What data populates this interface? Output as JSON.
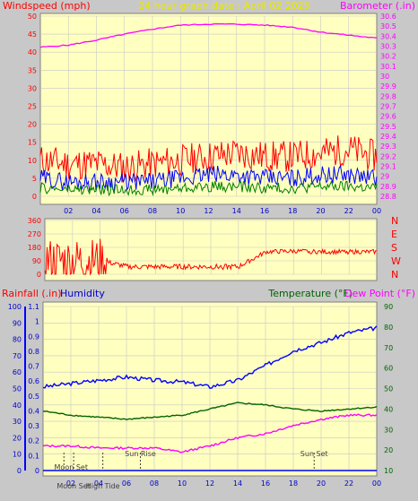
{
  "header": {
    "left_title": "Windspeed (mph)",
    "center_title": "24 hour graph date : April 02 2025",
    "right_title": "Barometer (.in)"
  },
  "colors": {
    "background": "#c8c8c8",
    "plot_bg": "#ffffc0",
    "grid": "#c8c8c8",
    "wind_gust": "#ff0000",
    "wind_avg": "#0000ff",
    "wind_min": "#008000",
    "barometer": "#ff00ff",
    "direction": "#ff0000",
    "humidity": "#0000ff",
    "temperature": "#006400",
    "dewpoint": "#ff00ff",
    "rainfall": "#0000ff",
    "left_axis_text": "#ff0000",
    "right_axis_text": "#ff00ff",
    "temp_axis_text": "#006400"
  },
  "wind_panel": {
    "left_ticks": [
      "0",
      "5",
      "10",
      "15",
      "20",
      "25",
      "30",
      "35",
      "40",
      "45",
      "50"
    ],
    "right_ticks": [
      "28.8",
      "28.9",
      "29",
      "29.1",
      "29.2",
      "29.3",
      "29.4",
      "29.5",
      "29.6",
      "29.7",
      "29.8",
      "29.9",
      "30",
      "30.1",
      "30.2",
      "30.3",
      "30.4",
      "30.5",
      "30.6"
    ]
  },
  "direction_panel": {
    "left_ticks": [
      "0",
      "90",
      "180",
      "270",
      "360"
    ],
    "compass": [
      "N",
      "W",
      "S",
      "E",
      "N"
    ]
  },
  "lower_panel": {
    "rain_title": "Rainfall (.in)",
    "humidity_title": "Humidity",
    "temperature_title": "Temperature (°F)",
    "dewpoint_title": "Dew Point (°F)",
    "humidity_ticks": [
      "0",
      "10",
      "20",
      "30",
      "40",
      "50",
      "60",
      "70",
      "80",
      "90",
      "100"
    ],
    "rain_ticks": [
      "0",
      "0.1",
      "0.2",
      "0.3",
      "0.4",
      "0.5",
      "0.6",
      "0.7",
      "0.8",
      "0.9",
      "1",
      "1.1"
    ],
    "temp_ticks": [
      "10",
      "20",
      "30",
      "40",
      "50",
      "60",
      "70",
      "80",
      "90"
    ],
    "markers": [
      {
        "label": "Sun Rise",
        "hour": 7.0
      },
      {
        "label": "Sun Set",
        "hour": 19.5
      },
      {
        "label": "Moon Set",
        "hour": 1.5
      },
      {
        "label": "Moon Set",
        "hour": 2.2
      },
      {
        "label": "High Tide",
        "hour": 4.3
      }
    ]
  },
  "x_ticks": [
    "02",
    "04",
    "06",
    "08",
    "10",
    "12",
    "14",
    "16",
    "18",
    "20",
    "22",
    "00"
  ],
  "chart_data": [
    {
      "type": "line",
      "title": "24 hour graph date : April 02 2025",
      "xlabel": "",
      "ylabel": "Windspeed (mph)",
      "y2label": "Barometer (.in)",
      "x": [
        0,
        2,
        4,
        6,
        8,
        10,
        12,
        14,
        16,
        18,
        20,
        22,
        24
      ],
      "ylim": [
        0,
        50
      ],
      "y2lim": [
        28.8,
        30.6
      ],
      "series": [
        {
          "name": "Gust",
          "values": [
            10,
            9,
            9,
            8,
            9,
            10,
            11,
            12,
            11,
            11,
            12,
            13,
            11
          ]
        },
        {
          "name": "Average",
          "values": [
            5,
            4,
            4,
            4,
            4,
            5,
            6,
            6,
            5,
            5,
            6,
            6,
            5
          ]
        },
        {
          "name": "Barometer",
          "axis": "right",
          "values": [
            30.29,
            30.31,
            30.36,
            30.42,
            30.47,
            30.51,
            30.52,
            30.52,
            30.51,
            30.49,
            30.44,
            30.41,
            30.38
          ]
        }
      ]
    },
    {
      "type": "line",
      "xlabel": "",
      "ylabel": "",
      "x": [
        0,
        2,
        4,
        6,
        8,
        10,
        12,
        14,
        16,
        18,
        20,
        22,
        24
      ],
      "ylim": [
        0,
        360
      ],
      "series": [
        {
          "name": "Wind direction",
          "values": [
            90,
            90,
            90,
            50,
            50,
            50,
            50,
            50,
            150,
            155,
            150,
            150,
            150
          ]
        }
      ]
    },
    {
      "type": "line",
      "xlabel": "",
      "ylabel": "Humidity",
      "y2label": "Temperature (°F)",
      "x": [
        0,
        2,
        4,
        6,
        8,
        10,
        12,
        14,
        16,
        18,
        20,
        22,
        24
      ],
      "ylim": [
        0,
        100
      ],
      "y2lim": [
        10,
        90
      ],
      "series": [
        {
          "name": "Humidity",
          "values": [
            51,
            53,
            55,
            57,
            55,
            54,
            51,
            55,
            64,
            73,
            78,
            84,
            87
          ]
        },
        {
          "name": "Temperature (°F)",
          "axis": "right",
          "values": [
            39,
            37,
            36,
            35,
            36,
            37,
            40,
            43,
            42,
            40,
            39,
            40,
            41
          ]
        },
        {
          "name": "Dew Point (°F)",
          "axis": "right",
          "values": [
            22,
            22,
            21,
            21,
            21,
            19,
            22,
            26,
            28,
            32,
            35,
            37,
            37
          ]
        },
        {
          "name": "Rainfall (.in)",
          "values": [
            0,
            0,
            0,
            0,
            0,
            0,
            0,
            0,
            0,
            0,
            0,
            0,
            0
          ]
        }
      ]
    }
  ]
}
